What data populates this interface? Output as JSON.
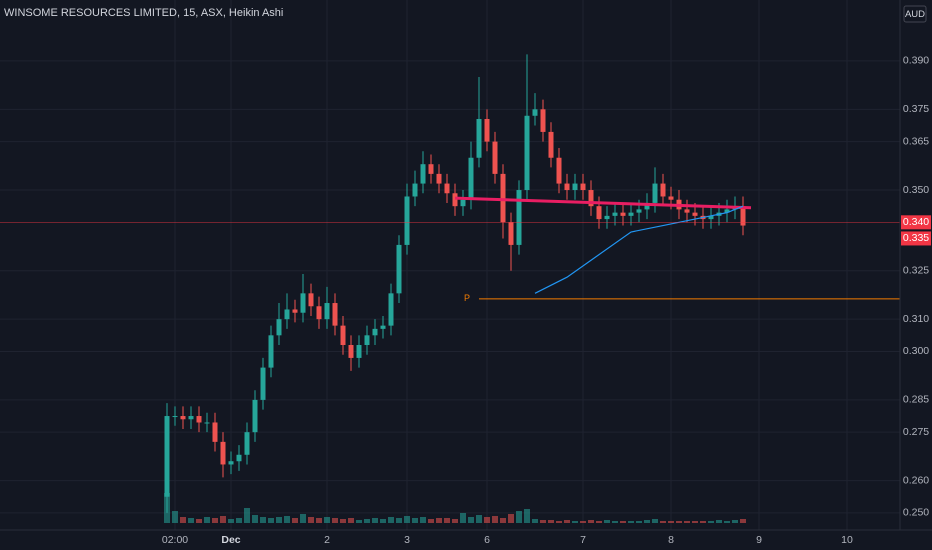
{
  "chart_data": {
    "type": "candlestick",
    "title": "WINSOME RESOURCES LIMITED, 15, ASX, Heikin Ashi",
    "currency": "AUD",
    "up_color": "#26a69a",
    "down_color": "#ef5350",
    "categories": [
      null,
      "02:00",
      null,
      null,
      null,
      null,
      null,
      null,
      "Dec",
      null,
      null,
      null,
      null,
      null,
      null,
      null,
      null,
      null,
      null,
      null,
      "2",
      null,
      null,
      null,
      null,
      null,
      null,
      null,
      null,
      null,
      "3",
      null,
      null,
      null,
      null,
      null,
      null,
      null,
      null,
      null,
      "6",
      null,
      null,
      null,
      null,
      null,
      null,
      null,
      null,
      null,
      null,
      null,
      "7",
      null,
      null,
      null,
      null,
      null,
      null,
      null,
      null,
      null,
      null,
      "8",
      null,
      null,
      null,
      null,
      null,
      null,
      null,
      null,
      null,
      null,
      "9",
      null,
      null,
      null,
      null,
      null,
      null,
      null,
      null,
      null,
      null,
      "10",
      null,
      null,
      null,
      null,
      null,
      null
    ],
    "open": [
      0.255,
      0.28,
      0.28,
      0.279,
      0.28,
      0.278,
      0.278,
      0.272,
      0.265,
      0.266,
      0.268,
      0.275,
      0.285,
      0.295,
      0.305,
      0.31,
      0.313,
      0.312,
      0.318,
      0.314,
      0.31,
      0.315,
      0.308,
      0.302,
      0.298,
      0.302,
      0.305,
      0.307,
      0.308,
      0.318,
      0.333,
      0.348,
      0.352,
      0.358,
      0.355,
      0.352,
      0.349,
      0.345,
      0.347,
      0.36,
      0.372,
      0.365,
      0.355,
      0.34,
      0.333,
      0.35,
      0.373,
      0.375,
      0.368,
      0.36,
      0.352,
      0.35,
      0.352,
      0.35,
      0.345,
      0.341,
      0.342,
      0.343,
      0.342,
      0.343,
      0.344,
      0.346,
      0.352,
      0.348,
      0.347,
      0.344,
      0.343,
      0.342,
      0.341,
      0.342,
      0.343,
      0.344,
      0.345,
      null,
      null,
      null,
      null,
      null,
      null,
      null,
      null,
      null,
      null,
      null,
      null,
      null,
      null,
      null,
      null,
      null,
      null,
      null
    ],
    "high": [
      0.284,
      0.283,
      0.283,
      0.283,
      0.283,
      0.281,
      0.281,
      0.275,
      0.269,
      0.271,
      0.278,
      0.288,
      0.298,
      0.308,
      0.315,
      0.318,
      0.316,
      0.324,
      0.321,
      0.317,
      0.32,
      0.318,
      0.311,
      0.305,
      0.305,
      0.308,
      0.31,
      0.311,
      0.321,
      0.336,
      0.352,
      0.356,
      0.362,
      0.361,
      0.358,
      0.355,
      0.352,
      0.35,
      0.365,
      0.385,
      0.375,
      0.368,
      0.358,
      0.343,
      0.353,
      0.392,
      0.38,
      0.378,
      0.371,
      0.363,
      0.355,
      0.355,
      0.355,
      0.353,
      0.348,
      0.345,
      0.346,
      0.346,
      0.346,
      0.347,
      0.349,
      0.357,
      0.355,
      0.351,
      0.35,
      0.347,
      0.346,
      0.345,
      0.345,
      0.346,
      0.347,
      0.348,
      0.348,
      null,
      null,
      null,
      null,
      null,
      null,
      null,
      null,
      null,
      null,
      null,
      null,
      null,
      null,
      null,
      null,
      null,
      null,
      null
    ],
    "low": [
      0.25,
      0.277,
      0.276,
      0.276,
      0.275,
      0.275,
      0.269,
      0.261,
      0.262,
      0.263,
      0.265,
      0.272,
      0.282,
      0.292,
      0.302,
      0.307,
      0.309,
      0.309,
      0.311,
      0.307,
      0.307,
      0.305,
      0.299,
      0.294,
      0.295,
      0.299,
      0.302,
      0.304,
      0.305,
      0.315,
      0.33,
      0.345,
      0.349,
      0.352,
      0.349,
      0.346,
      0.342,
      0.342,
      0.344,
      0.357,
      0.362,
      0.352,
      0.335,
      0.325,
      0.33,
      0.347,
      0.37,
      0.365,
      0.357,
      0.349,
      0.347,
      0.347,
      0.347,
      0.342,
      0.338,
      0.338,
      0.339,
      0.339,
      0.339,
      0.34,
      0.341,
      0.343,
      0.345,
      0.344,
      0.341,
      0.34,
      0.339,
      0.338,
      0.338,
      0.339,
      0.34,
      0.341,
      0.336,
      null,
      null,
      null,
      null,
      null,
      null,
      null,
      null,
      null,
      null,
      null,
      null,
      null,
      null,
      null,
      null,
      null,
      null,
      null
    ],
    "close": [
      0.28,
      0.28,
      0.279,
      0.28,
      0.278,
      0.278,
      0.272,
      0.265,
      0.266,
      0.268,
      0.275,
      0.285,
      0.295,
      0.305,
      0.31,
      0.313,
      0.312,
      0.318,
      0.314,
      0.31,
      0.315,
      0.308,
      0.302,
      0.298,
      0.302,
      0.305,
      0.307,
      0.308,
      0.318,
      0.333,
      0.348,
      0.352,
      0.358,
      0.355,
      0.352,
      0.349,
      0.345,
      0.347,
      0.36,
      0.372,
      0.365,
      0.355,
      0.34,
      0.333,
      0.35,
      0.373,
      0.375,
      0.368,
      0.36,
      0.352,
      0.35,
      0.352,
      0.35,
      0.345,
      0.341,
      0.342,
      0.343,
      0.342,
      0.343,
      0.344,
      0.346,
      0.352,
      0.348,
      0.347,
      0.344,
      0.343,
      0.342,
      0.341,
      0.342,
      0.343,
      0.344,
      0.345,
      0.339,
      null,
      null,
      null,
      null,
      null,
      null,
      null,
      null,
      null,
      null,
      null,
      null,
      null,
      null,
      null,
      null,
      null,
      null,
      null
    ],
    "volume": [
      30,
      12,
      6,
      5,
      4,
      6,
      5,
      7,
      4,
      5,
      15,
      8,
      6,
      5,
      6,
      7,
      5,
      9,
      6,
      5,
      6,
      5,
      4,
      5,
      3,
      4,
      5,
      4,
      6,
      5,
      7,
      5,
      6,
      4,
      5,
      5,
      4,
      10,
      6,
      8,
      6,
      7,
      5,
      9,
      12,
      14,
      4,
      3,
      3,
      2,
      3,
      2,
      2,
      3,
      2,
      3,
      2,
      2,
      2,
      2,
      3,
      4,
      2,
      2,
      2,
      2,
      2,
      2,
      2,
      3,
      2,
      3,
      4,
      null,
      null,
      null,
      null,
      null,
      null,
      null,
      null,
      null,
      null,
      null,
      null,
      null,
      null,
      null,
      null,
      null,
      null,
      null
    ],
    "ylim": [
      0.2447,
      0.407
    ],
    "yticks": [
      {
        "value": 0.25,
        "label": "0.250"
      },
      {
        "value": 0.26,
        "label": "0.260"
      },
      {
        "value": 0.275,
        "label": "0.275"
      },
      {
        "value": 0.285,
        "label": "0.285"
      },
      {
        "value": 0.3,
        "label": "0.300"
      },
      {
        "value": 0.31,
        "label": "0.310"
      },
      {
        "value": 0.325,
        "label": "0.325"
      },
      {
        "value": 0.35,
        "label": "0.350"
      },
      {
        "value": 0.365,
        "label": "0.365"
      },
      {
        "value": 0.375,
        "label": "0.375"
      },
      {
        "value": 0.39,
        "label": "0.390"
      }
    ],
    "grid": true,
    "price_labels": [
      {
        "value": 0.34,
        "label": "0.340",
        "color": "#f23645"
      },
      {
        "value": 0.335,
        "label": "0.335",
        "color": "#f23645"
      }
    ],
    "lines": [
      {
        "color": "#e91e63",
        "x": [
          36,
          73
        ],
        "y": [
          0.3475,
          0.3445
        ]
      },
      {
        "color": "#2196f3",
        "x": [
          46,
          50,
          54,
          58,
          62,
          66,
          70,
          72
        ],
        "y": [
          0.318,
          0.323,
          0.33,
          0.337,
          0.339,
          0.341,
          0.343,
          0.345
        ]
      }
    ],
    "pivot": {
      "label": "P",
      "value": 0.3163,
      "color": "#f57c00",
      "x": 39
    }
  }
}
